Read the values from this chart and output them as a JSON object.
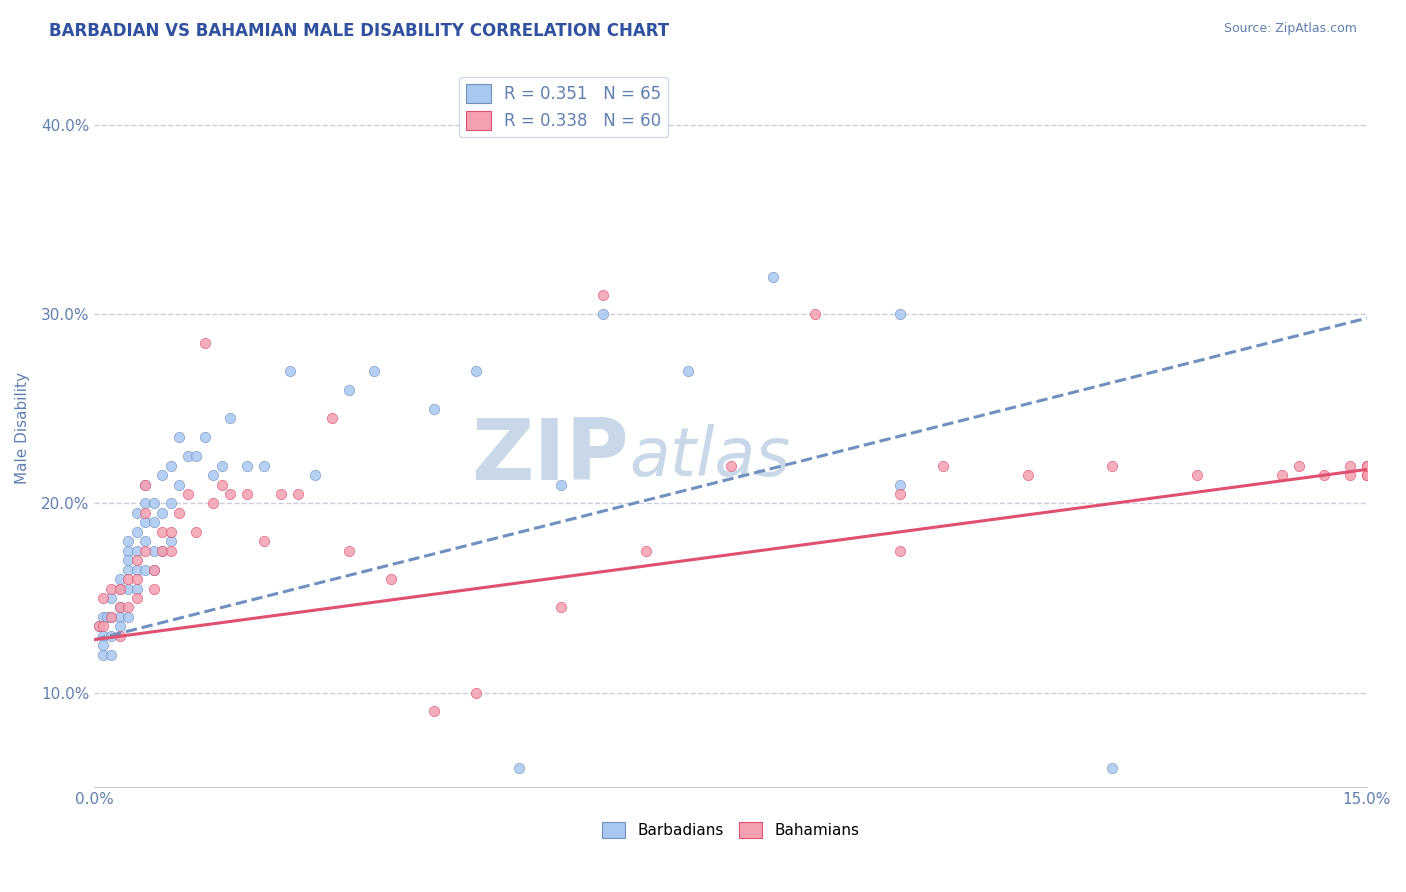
{
  "title": "BARBADIAN VS BAHAMIAN MALE DISABILITY CORRELATION CHART",
  "source_text": "Source: ZipAtlas.com",
  "ylabel": "Male Disability",
  "xlim": [
    0.0,
    0.15
  ],
  "ylim": [
    0.05,
    0.43
  ],
  "xticks": [
    0.0,
    0.015,
    0.03,
    0.045,
    0.06,
    0.075,
    0.09,
    0.105,
    0.12,
    0.135,
    0.15
  ],
  "xticklabels": [
    "0.0%",
    "",
    "",
    "",
    "",
    "",
    "",
    "",
    "",
    "",
    "15.0%"
  ],
  "yticks": [
    0.1,
    0.2,
    0.3,
    0.4
  ],
  "yticklabels": [
    "10.0%",
    "20.0%",
    "30.0%",
    "40.0%"
  ],
  "legend_r1": "R = 0.351",
  "legend_n1": "N = 65",
  "legend_r2": "R = 0.338",
  "legend_n2": "N = 60",
  "barbadian_color": "#a8c8f0",
  "bahamian_color": "#f4a0b0",
  "trend1_color": "#7090c0",
  "trend2_color": "#e05070",
  "watermark_color": "#c8d8e8",
  "background_color": "#ffffff",
  "grid_color": "#ccccdd",
  "title_color": "#3050a0",
  "tick_color": "#6080b0",
  "trend1_x0": 0.0,
  "trend1_y0": 0.128,
  "trend1_x1": 0.15,
  "trend1_y1": 0.298,
  "trend2_x0": 0.0,
  "trend2_y0": 0.128,
  "trend2_x1": 0.15,
  "trend2_y1": 0.218,
  "barbadians_x": [
    0.0005,
    0.001,
    0.001,
    0.001,
    0.001,
    0.0015,
    0.002,
    0.002,
    0.002,
    0.002,
    0.003,
    0.003,
    0.003,
    0.003,
    0.003,
    0.004,
    0.004,
    0.004,
    0.004,
    0.004,
    0.004,
    0.005,
    0.005,
    0.005,
    0.005,
    0.005,
    0.006,
    0.006,
    0.006,
    0.006,
    0.006,
    0.007,
    0.007,
    0.007,
    0.007,
    0.008,
    0.008,
    0.008,
    0.009,
    0.009,
    0.009,
    0.01,
    0.01,
    0.011,
    0.012,
    0.013,
    0.014,
    0.015,
    0.016,
    0.018,
    0.02,
    0.023,
    0.026,
    0.03,
    0.033,
    0.04,
    0.045,
    0.05,
    0.055,
    0.06,
    0.07,
    0.08,
    0.095,
    0.095,
    0.12
  ],
  "barbadians_y": [
    0.135,
    0.14,
    0.13,
    0.125,
    0.12,
    0.14,
    0.15,
    0.14,
    0.13,
    0.12,
    0.16,
    0.155,
    0.145,
    0.14,
    0.135,
    0.18,
    0.175,
    0.17,
    0.165,
    0.155,
    0.14,
    0.195,
    0.185,
    0.175,
    0.165,
    0.155,
    0.21,
    0.2,
    0.19,
    0.18,
    0.165,
    0.2,
    0.19,
    0.175,
    0.165,
    0.215,
    0.195,
    0.175,
    0.22,
    0.2,
    0.18,
    0.235,
    0.21,
    0.225,
    0.225,
    0.235,
    0.215,
    0.22,
    0.245,
    0.22,
    0.22,
    0.27,
    0.215,
    0.26,
    0.27,
    0.25,
    0.27,
    0.06,
    0.21,
    0.3,
    0.27,
    0.32,
    0.21,
    0.3,
    0.06
  ],
  "bahamians_x": [
    0.0005,
    0.001,
    0.001,
    0.002,
    0.002,
    0.003,
    0.003,
    0.003,
    0.004,
    0.004,
    0.005,
    0.005,
    0.005,
    0.006,
    0.006,
    0.006,
    0.007,
    0.007,
    0.008,
    0.008,
    0.009,
    0.009,
    0.01,
    0.011,
    0.012,
    0.013,
    0.014,
    0.015,
    0.016,
    0.018,
    0.02,
    0.022,
    0.024,
    0.028,
    0.03,
    0.035,
    0.04,
    0.045,
    0.055,
    0.06,
    0.065,
    0.075,
    0.085,
    0.095,
    0.095,
    0.1,
    0.11,
    0.12,
    0.13,
    0.14,
    0.142,
    0.145,
    0.148,
    0.148,
    0.15,
    0.15,
    0.15,
    0.15,
    0.15,
    0.15
  ],
  "bahamians_y": [
    0.135,
    0.15,
    0.135,
    0.155,
    0.14,
    0.155,
    0.145,
    0.13,
    0.16,
    0.145,
    0.17,
    0.16,
    0.15,
    0.21,
    0.195,
    0.175,
    0.165,
    0.155,
    0.185,
    0.175,
    0.185,
    0.175,
    0.195,
    0.205,
    0.185,
    0.285,
    0.2,
    0.21,
    0.205,
    0.205,
    0.18,
    0.205,
    0.205,
    0.245,
    0.175,
    0.16,
    0.09,
    0.1,
    0.145,
    0.31,
    0.175,
    0.22,
    0.3,
    0.175,
    0.205,
    0.22,
    0.215,
    0.22,
    0.215,
    0.215,
    0.22,
    0.215,
    0.215,
    0.22,
    0.22,
    0.215,
    0.22,
    0.215,
    0.215,
    0.22
  ],
  "figsize": [
    14.06,
    8.92
  ],
  "dpi": 100
}
